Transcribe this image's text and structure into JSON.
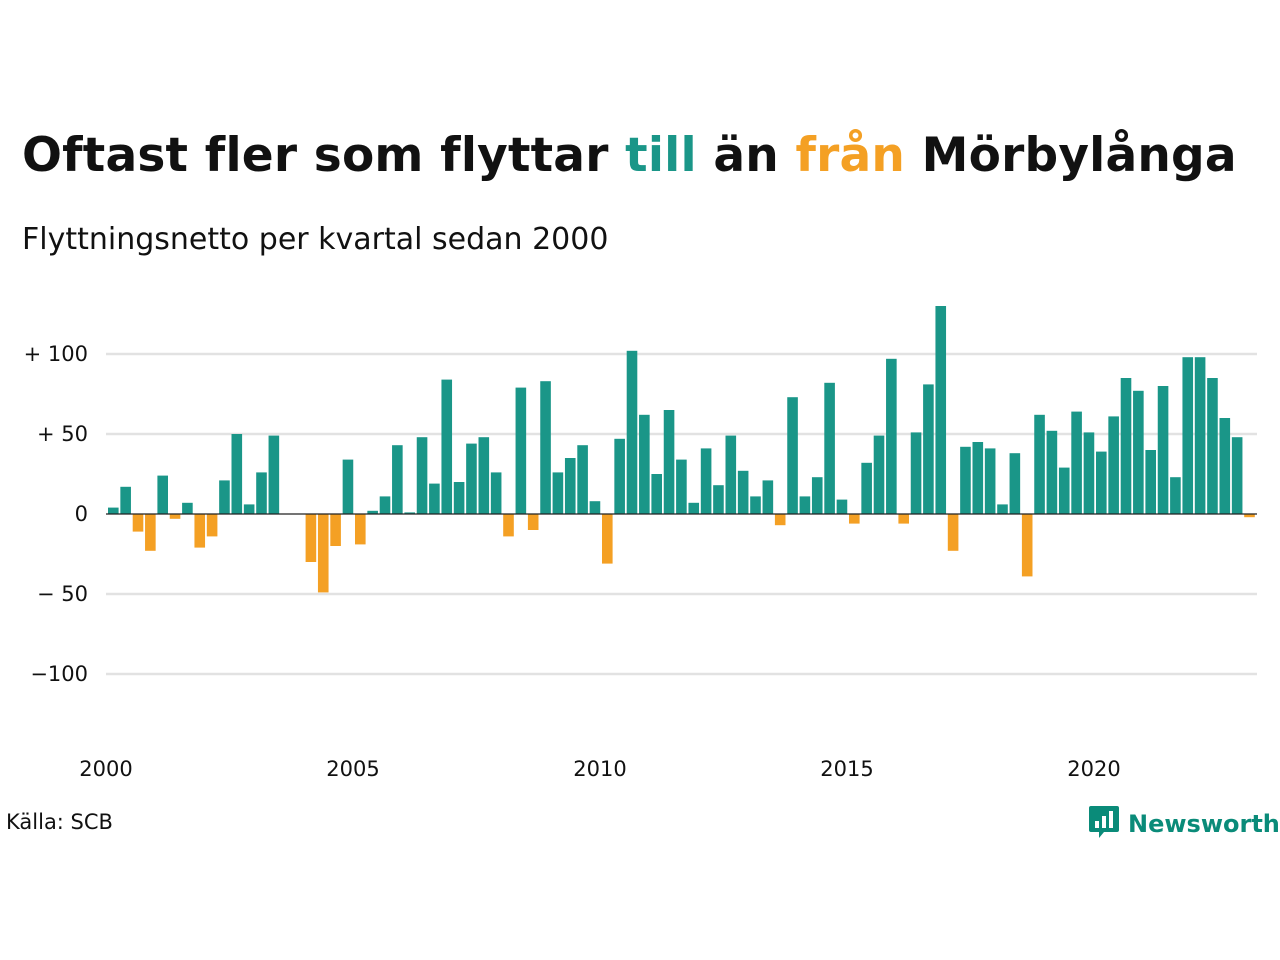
{
  "header": {
    "title_part1": "Oftast fler som flyttar ",
    "title_till": "till",
    "title_part2": " än ",
    "title_fran": "från",
    "title_part3": " Mörbylånga",
    "subtitle": "Flyttningsnetto per kvartal sedan 2000"
  },
  "footer": {
    "source": "Källa: SCB",
    "brand": "Newsworthy"
  },
  "colors": {
    "positive": "#1a9688",
    "negative": "#f4a024",
    "gridline": "#e2e2e2",
    "brand": "#0a8b79"
  },
  "icons": {
    "logo": "bar-chart-speech-bubble-icon"
  },
  "chart_data": {
    "type": "bar",
    "title": "Oftast fler som flyttar till än från Mörbylånga",
    "subtitle": "Flyttningsnetto per kvartal sedan 2000",
    "x_tick_labels": [
      "2000",
      "2005",
      "2010",
      "2015",
      "2020"
    ],
    "y_tick_labels": [
      {
        "value": 100,
        "label": "+ 100"
      },
      {
        "value": 50,
        "label": "+  50"
      },
      {
        "value": 0,
        "label": "0"
      },
      {
        "value": -50,
        "label": "− 50"
      },
      {
        "value": -100,
        "label": "−100"
      }
    ],
    "ylim": [
      -100,
      130
    ],
    "grid": true,
    "start_period": "2000 Q1",
    "values": [
      4,
      17,
      -11,
      -23,
      24,
      -3,
      7,
      -21,
      -14,
      21,
      50,
      6,
      26,
      49,
      0,
      0,
      -30,
      -49,
      -20,
      34,
      -19,
      2,
      11,
      43,
      1,
      48,
      19,
      84,
      20,
      44,
      48,
      26,
      -14,
      79,
      -10,
      83,
      26,
      35,
      43,
      8,
      -31,
      47,
      102,
      62,
      25,
      65,
      34,
      7,
      41,
      18,
      49,
      27,
      11,
      21,
      -7,
      73,
      11,
      23,
      82,
      9,
      -6,
      32,
      49,
      97,
      -6,
      51,
      81,
      130,
      -23,
      42,
      45,
      41,
      6,
      38,
      -39,
      62,
      52,
      29,
      64,
      51,
      39,
      61,
      85,
      77,
      40,
      80,
      23,
      98,
      98,
      85,
      60,
      48,
      -2
    ]
  }
}
